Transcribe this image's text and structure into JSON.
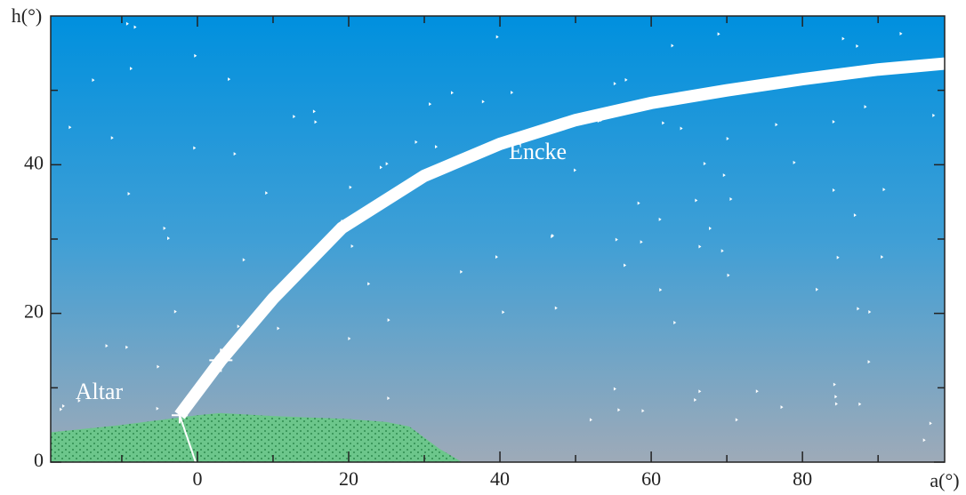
{
  "chart_data": {
    "type": "line",
    "x_label": "a(°)",
    "y_label": "h(°)",
    "xlim": [
      -19.4,
      98.8
    ],
    "ylim": [
      0,
      60
    ],
    "xticks": [
      0,
      20,
      40,
      60,
      80
    ],
    "yticks": [
      0,
      20,
      40
    ],
    "xminor": [
      -10,
      10,
      30,
      50,
      70,
      90
    ],
    "yminor": [
      10,
      30,
      50
    ],
    "series": [
      {
        "name": "Encke",
        "color": "#ffffff",
        "x": [
          -2.35,
          3.1,
          10,
          19.1,
          30,
          40,
          50,
          60,
          70,
          80,
          90,
          98.8
        ],
        "values": [
          6.3,
          13.7,
          22,
          31.5,
          38.5,
          42.8,
          46,
          48.3,
          50,
          51.5,
          52.8,
          53.6
        ]
      }
    ],
    "horizon": {
      "color": "#5cbf7c",
      "x": [
        -19.4,
        -10,
        0,
        3,
        10,
        20,
        25,
        28,
        32,
        35
      ],
      "values": [
        4,
        5,
        6.3,
        6.6,
        6.2,
        5.8,
        5.4,
        4.8,
        1.8,
        0
      ]
    },
    "markers": {
      "x": [
        -2.35,
        3.1,
        19.1
      ],
      "values": [
        6.3,
        13.7,
        31.5
      ]
    },
    "annotations": [
      {
        "text": "Altar",
        "x": -13,
        "y": 9.2
      },
      {
        "text": "Encke",
        "x": 45,
        "y": 41.5
      }
    ]
  }
}
